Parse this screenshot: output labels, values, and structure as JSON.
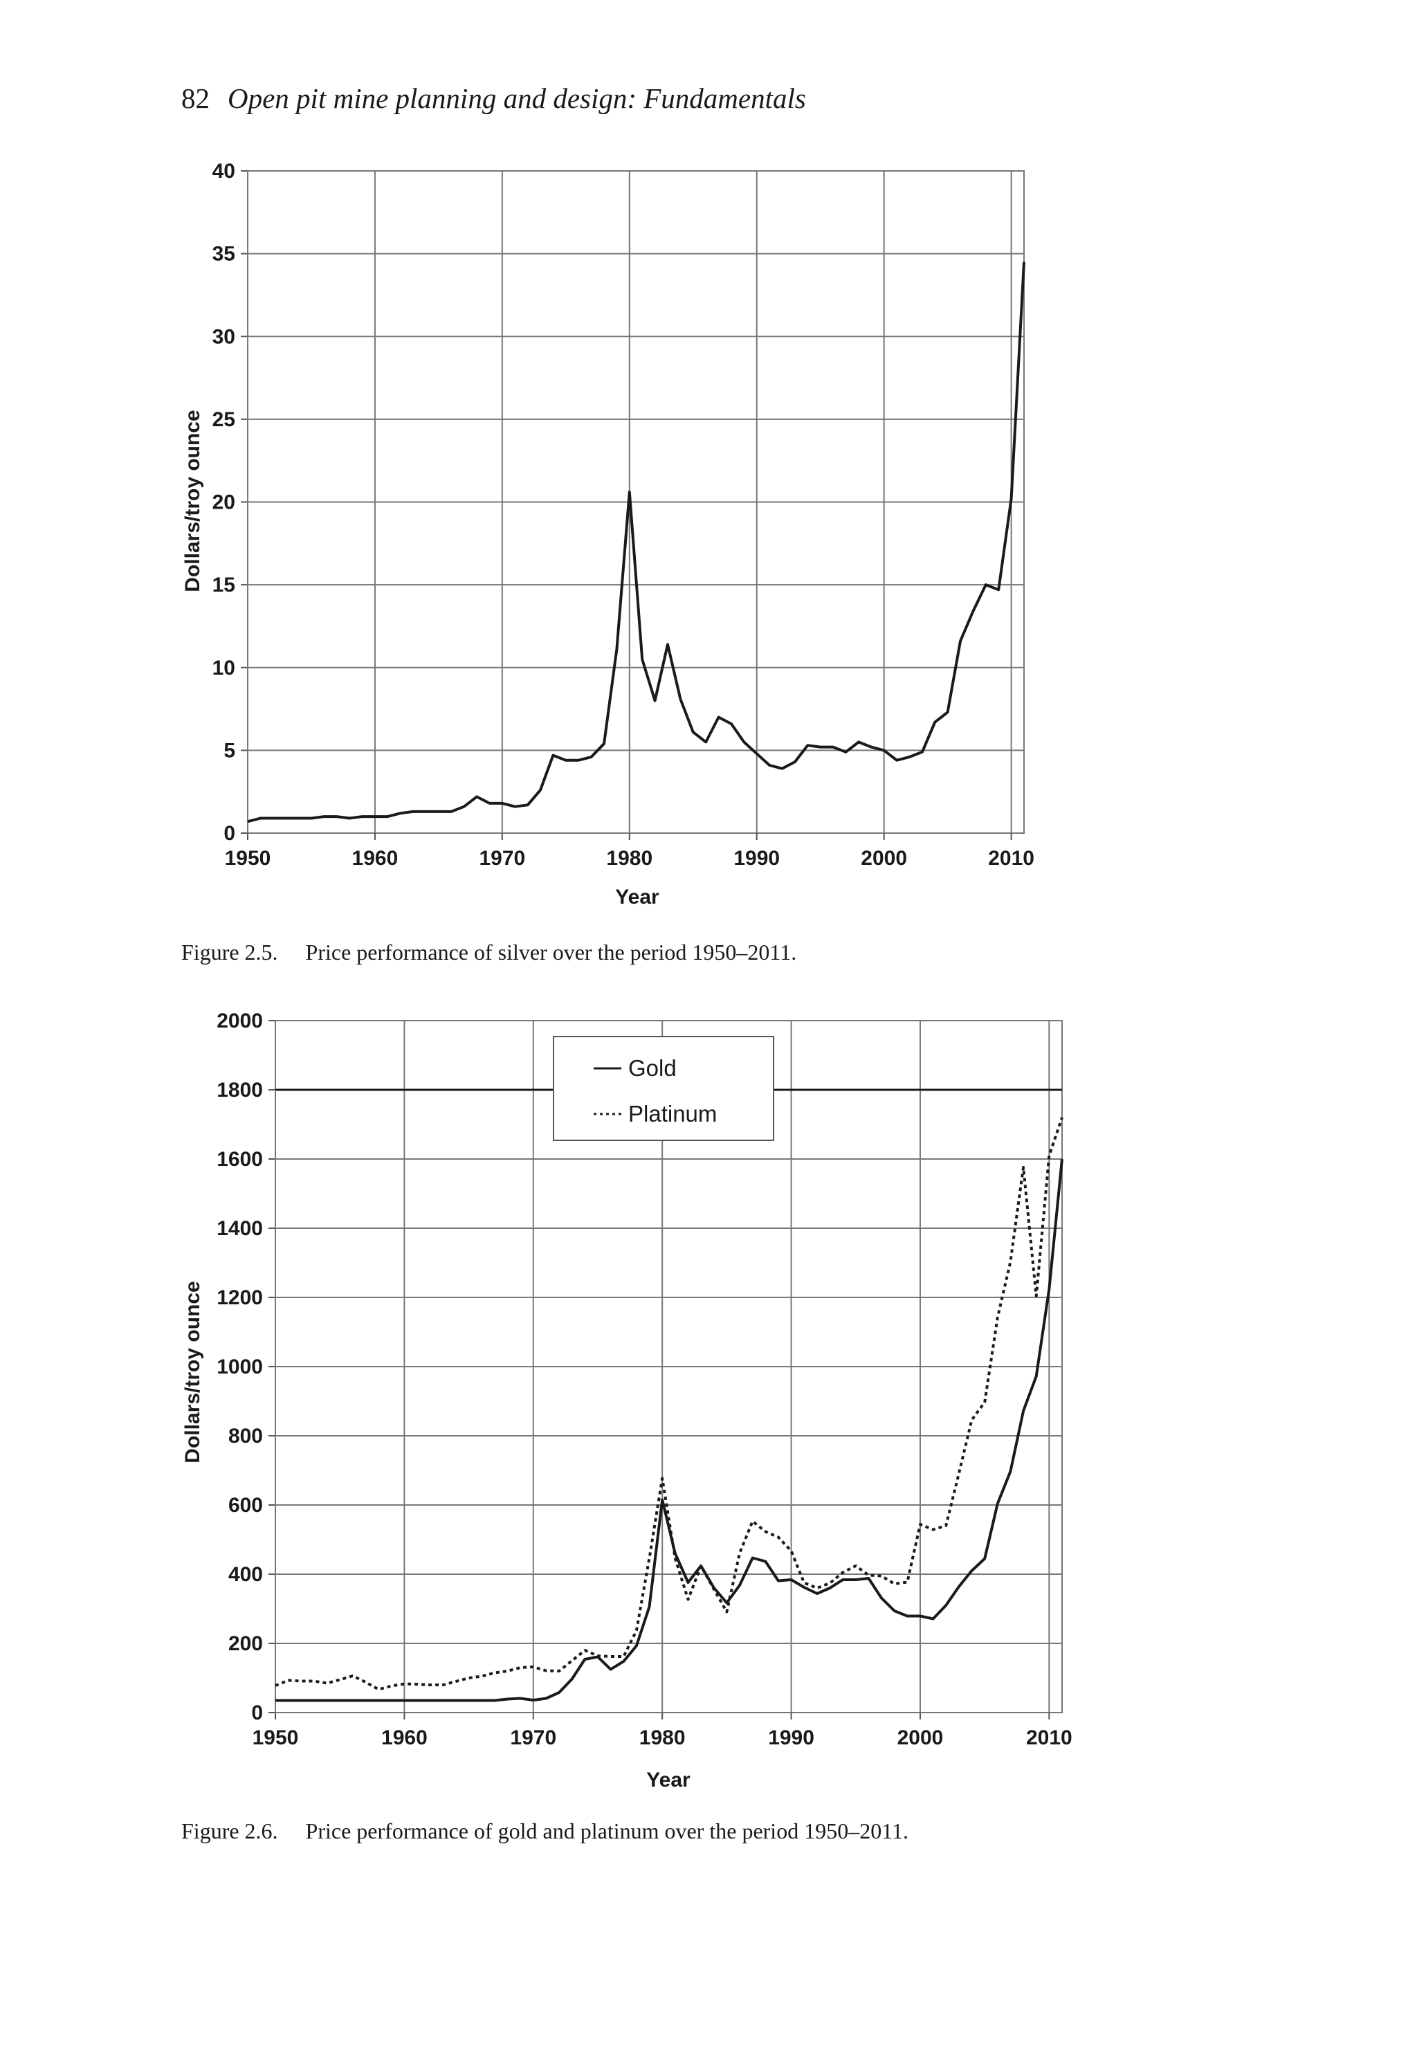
{
  "header": {
    "page_number": "82",
    "book_title": "Open pit mine planning and design: Fundamentals"
  },
  "captions": [
    {
      "label": "Figure 2.5.",
      "text": "Price performance of silver over the period 1950–2011."
    },
    {
      "label": "Figure 2.6.",
      "text": "Price performance of gold and platinum over the period 1950–2011."
    }
  ],
  "chart_data": [
    {
      "type": "line",
      "title": "",
      "xlabel": "Year",
      "ylabel": "Dollars/troy ounce",
      "xlim": [
        1950,
        2011
      ],
      "ylim": [
        0,
        40
      ],
      "x_ticks": [
        1950,
        1960,
        1970,
        1980,
        1990,
        2000,
        2010
      ],
      "y_ticks": [
        0,
        5,
        10,
        15,
        20,
        25,
        30,
        35,
        40
      ],
      "grid": true,
      "line_color": "#1a1a1a",
      "series": [
        {
          "style": "solid",
          "points": [
            [
              1950,
              0.7
            ],
            [
              1951,
              0.9
            ],
            [
              1952,
              0.9
            ],
            [
              1953,
              0.9
            ],
            [
              1954,
              0.9
            ],
            [
              1955,
              0.9
            ],
            [
              1956,
              1.0
            ],
            [
              1957,
              1.0
            ],
            [
              1958,
              0.9
            ],
            [
              1959,
              1.0
            ],
            [
              1960,
              1.0
            ],
            [
              1961,
              1.0
            ],
            [
              1962,
              1.2
            ],
            [
              1963,
              1.3
            ],
            [
              1964,
              1.3
            ],
            [
              1965,
              1.3
            ],
            [
              1966,
              1.3
            ],
            [
              1967,
              1.6
            ],
            [
              1968,
              2.2
            ],
            [
              1969,
              1.8
            ],
            [
              1970,
              1.8
            ],
            [
              1971,
              1.6
            ],
            [
              1972,
              1.7
            ],
            [
              1973,
              2.6
            ],
            [
              1974,
              4.7
            ],
            [
              1975,
              4.4
            ],
            [
              1976,
              4.4
            ],
            [
              1977,
              4.6
            ],
            [
              1978,
              5.4
            ],
            [
              1979,
              11.1
            ],
            [
              1980,
              20.6
            ],
            [
              1981,
              10.5
            ],
            [
              1982,
              8.0
            ],
            [
              1983,
              11.4
            ],
            [
              1984,
              8.1
            ],
            [
              1985,
              6.1
            ],
            [
              1986,
              5.5
            ],
            [
              1987,
              7.0
            ],
            [
              1988,
              6.6
            ],
            [
              1989,
              5.5
            ],
            [
              1990,
              4.8
            ],
            [
              1991,
              4.1
            ],
            [
              1992,
              3.9
            ],
            [
              1993,
              4.3
            ],
            [
              1994,
              5.3
            ],
            [
              1995,
              5.2
            ],
            [
              1996,
              5.2
            ],
            [
              1997,
              4.9
            ],
            [
              1998,
              5.5
            ],
            [
              1999,
              5.2
            ],
            [
              2000,
              5.0
            ],
            [
              2001,
              4.4
            ],
            [
              2002,
              4.6
            ],
            [
              2003,
              4.9
            ],
            [
              2004,
              6.7
            ],
            [
              2005,
              7.3
            ],
            [
              2006,
              11.6
            ],
            [
              2007,
              13.4
            ],
            [
              2008,
              15.0
            ],
            [
              2009,
              14.7
            ],
            [
              2010,
              20.2
            ],
            [
              2011,
              34.5
            ]
          ]
        }
      ]
    },
    {
      "type": "line",
      "title": "",
      "xlabel": "Year",
      "ylabel": "Dollars/troy ounce",
      "xlim": [
        1950,
        2011
      ],
      "ylim": [
        0,
        2000
      ],
      "x_ticks": [
        1950,
        1960,
        1970,
        1980,
        1990,
        2000,
        2010
      ],
      "y_ticks": [
        0,
        200,
        400,
        600,
        800,
        1000,
        1200,
        1400,
        1600,
        1800,
        2000
      ],
      "grid": true,
      "legend_position": "top-center",
      "line_color": "#1a1a1a",
      "series": [
        {
          "name": "Gold",
          "style": "solid",
          "points": [
            [
              1950,
              35
            ],
            [
              1951,
              35
            ],
            [
              1952,
              35
            ],
            [
              1953,
              35
            ],
            [
              1954,
              35
            ],
            [
              1955,
              35
            ],
            [
              1956,
              35
            ],
            [
              1957,
              35
            ],
            [
              1958,
              35
            ],
            [
              1959,
              35
            ],
            [
              1960,
              35
            ],
            [
              1961,
              35
            ],
            [
              1962,
              35
            ],
            [
              1963,
              35
            ],
            [
              1964,
              35
            ],
            [
              1965,
              35
            ],
            [
              1966,
              35
            ],
            [
              1967,
              35
            ],
            [
              1968,
              39
            ],
            [
              1969,
              41
            ],
            [
              1970,
              36
            ],
            [
              1971,
              41
            ],
            [
              1972,
              58
            ],
            [
              1973,
              97
            ],
            [
              1974,
              154
            ],
            [
              1975,
              161
            ],
            [
              1976,
              125
            ],
            [
              1977,
              148
            ],
            [
              1978,
              193
            ],
            [
              1979,
              306
            ],
            [
              1980,
              615
            ],
            [
              1981,
              460
            ],
            [
              1982,
              376
            ],
            [
              1983,
              424
            ],
            [
              1984,
              361
            ],
            [
              1985,
              317
            ],
            [
              1986,
              368
            ],
            [
              1987,
              447
            ],
            [
              1988,
              437
            ],
            [
              1989,
              381
            ],
            [
              1990,
              384
            ],
            [
              1991,
              362
            ],
            [
              1992,
              344
            ],
            [
              1993,
              360
            ],
            [
              1994,
              384
            ],
            [
              1995,
              384
            ],
            [
              1996,
              388
            ],
            [
              1997,
              331
            ],
            [
              1998,
              294
            ],
            [
              1999,
              279
            ],
            [
              2000,
              279
            ],
            [
              2001,
              271
            ],
            [
              2002,
              310
            ],
            [
              2003,
              364
            ],
            [
              2004,
              410
            ],
            [
              2005,
              445
            ],
            [
              2006,
              604
            ],
            [
              2007,
              697
            ],
            [
              2008,
              872
            ],
            [
              2009,
              972
            ],
            [
              2010,
              1225
            ],
            [
              2011,
              1600
            ]
          ]
        },
        {
          "name": "Platinum",
          "style": "dotted",
          "points": [
            [
              1950,
              78
            ],
            [
              1951,
              93
            ],
            [
              1952,
              91
            ],
            [
              1953,
              91
            ],
            [
              1954,
              85
            ],
            [
              1955,
              95
            ],
            [
              1956,
              106
            ],
            [
              1957,
              88
            ],
            [
              1958,
              67
            ],
            [
              1959,
              77
            ],
            [
              1960,
              83
            ],
            [
              1961,
              82
            ],
            [
              1962,
              80
            ],
            [
              1963,
              80
            ],
            [
              1964,
              90
            ],
            [
              1965,
              100
            ],
            [
              1966,
              105
            ],
            [
              1967,
              115
            ],
            [
              1968,
              120
            ],
            [
              1969,
              130
            ],
            [
              1970,
              132
            ],
            [
              1971,
              121
            ],
            [
              1972,
              120
            ],
            [
              1973,
              150
            ],
            [
              1974,
              180
            ],
            [
              1975,
              164
            ],
            [
              1976,
              162
            ],
            [
              1977,
              162
            ],
            [
              1978,
              237
            ],
            [
              1979,
              446
            ],
            [
              1980,
              677
            ],
            [
              1981,
              446
            ],
            [
              1982,
              327
            ],
            [
              1983,
              424
            ],
            [
              1984,
              357
            ],
            [
              1985,
              291
            ],
            [
              1986,
              461
            ],
            [
              1987,
              553
            ],
            [
              1988,
              523
            ],
            [
              1989,
              507
            ],
            [
              1990,
              467
            ],
            [
              1991,
              375
            ],
            [
              1992,
              360
            ],
            [
              1993,
              374
            ],
            [
              1994,
              405
            ],
            [
              1995,
              424
            ],
            [
              1996,
              397
            ],
            [
              1997,
              395
            ],
            [
              1998,
              372
            ],
            [
              1999,
              377
            ],
            [
              2000,
              544
            ],
            [
              2001,
              529
            ],
            [
              2002,
              540
            ],
            [
              2003,
              691
            ],
            [
              2004,
              846
            ],
            [
              2005,
              897
            ],
            [
              2006,
              1142
            ],
            [
              2007,
              1303
            ],
            [
              2008,
              1576
            ],
            [
              2009,
              1204
            ],
            [
              2010,
              1610
            ],
            [
              2011,
              1720
            ]
          ]
        }
      ]
    }
  ]
}
